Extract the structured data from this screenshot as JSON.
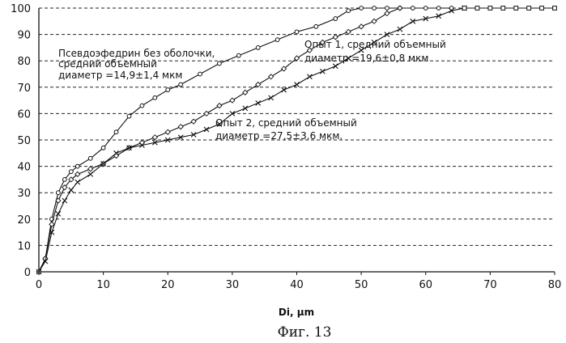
{
  "chart_data": {
    "type": "line",
    "xlabel": "Di, µm",
    "ylabel": "",
    "xlim": [
      0,
      80
    ],
    "ylim": [
      0,
      100
    ],
    "x_ticks": [
      "0",
      "10",
      "20",
      "30",
      "40",
      "50",
      "60",
      "70",
      "80"
    ],
    "y_ticks": [
      "0",
      "10",
      "20",
      "30",
      "40",
      "50",
      "60",
      "70",
      "80",
      "90",
      "100"
    ],
    "grid": "horizontal-dashed",
    "caption": "Фиг. 13",
    "annotations": [
      {
        "lines": [
          "Псевдоэфедрин без оболочки,",
          "средний объемный",
          "диаметр =14,9±1,4 мкм"
        ]
      },
      {
        "lines": [
          "Опыт 1, средний объемный",
          "диаметр =19,6±0,8 мкм"
        ]
      },
      {
        "lines": [
          "Опыт 2, средний объемный",
          "диаметр =27,5±3,6 мкм."
        ]
      }
    ],
    "series": [
      {
        "marker": "circle",
        "x": [
          0,
          1,
          2,
          3,
          4,
          5,
          6,
          8,
          10,
          12,
          14,
          16,
          18,
          20,
          22,
          25,
          28,
          31,
          34,
          37,
          40,
          43,
          46,
          48,
          50,
          52,
          54,
          56,
          58,
          60,
          62,
          64
        ],
        "y": [
          0,
          5,
          20,
          30,
          35,
          38,
          40,
          43,
          47,
          53,
          59,
          63,
          66,
          69,
          71,
          75,
          79,
          82,
          85,
          88,
          91,
          93,
          96,
          99,
          100,
          100,
          100,
          100,
          100,
          100,
          100,
          100
        ]
      },
      {
        "marker": "diamond",
        "x": [
          0,
          1,
          2,
          3,
          4,
          5,
          6,
          8,
          10,
          12,
          14,
          16,
          18,
          20,
          22,
          24,
          26,
          28,
          30,
          32,
          34,
          36,
          38,
          40,
          42,
          44,
          46,
          48,
          50,
          52,
          54,
          56
        ],
        "y": [
          0,
          5,
          18,
          27,
          32,
          35,
          37,
          39,
          41,
          44,
          47,
          49,
          51,
          53,
          55,
          57,
          60,
          63,
          65,
          68,
          71,
          74,
          77,
          81,
          84,
          87,
          89,
          91,
          93,
          95,
          98,
          100
        ]
      },
      {
        "marker": "cross",
        "x": [
          0,
          1,
          2,
          3,
          4,
          5,
          6,
          8,
          10,
          12,
          14,
          16,
          18,
          20,
          22,
          24,
          26,
          28,
          30,
          32,
          34,
          36,
          38,
          40,
          42,
          44,
          46,
          48,
          50,
          52,
          54,
          56,
          58,
          60,
          62,
          64,
          66
        ],
        "y": [
          0,
          4,
          15,
          22,
          27,
          31,
          34,
          37,
          41,
          45,
          47,
          48,
          49,
          50,
          51,
          52,
          54,
          56,
          60,
          62,
          64,
          66,
          69,
          71,
          74,
          76,
          78,
          81,
          84,
          87,
          90,
          92,
          95,
          96,
          97,
          99,
          100
        ]
      },
      {
        "marker": "square",
        "x": [
          66,
          68,
          70,
          72,
          74,
          76,
          78,
          80
        ],
        "y": [
          100,
          100,
          100,
          100,
          100,
          100,
          100,
          100
        ]
      }
    ]
  }
}
